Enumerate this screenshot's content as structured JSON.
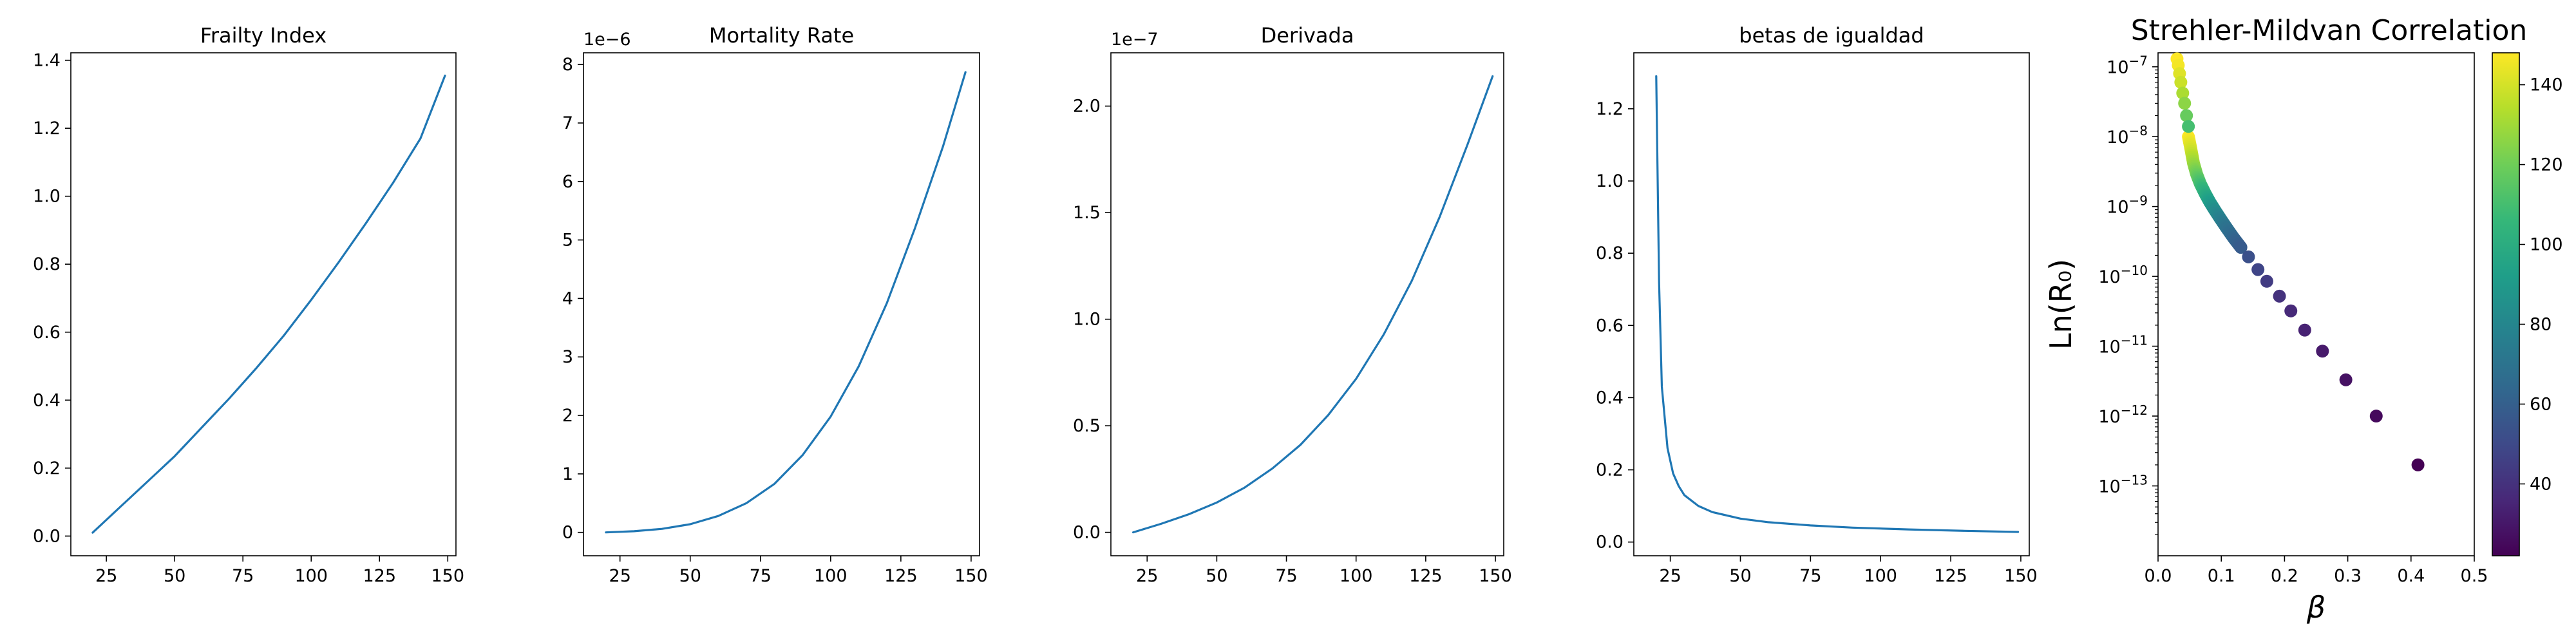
{
  "chart_data": [
    {
      "type": "line",
      "title": "Frailty Index",
      "xlim": [
        12,
        153
      ],
      "ylim": [
        -0.058,
        1.422
      ],
      "xticks": [
        25,
        50,
        75,
        100,
        125,
        150
      ],
      "xtick_labels": [
        "25",
        "50",
        "75",
        "100",
        "125",
        "150"
      ],
      "yticks": [
        0.0,
        0.2,
        0.4,
        0.6,
        0.8,
        1.0,
        1.2,
        1.4
      ],
      "ytick_labels": [
        "0.0",
        "0.2",
        "0.4",
        "0.6",
        "0.8",
        "1.0",
        "1.2",
        "1.4"
      ],
      "series": [
        {
          "color": "#1f77b4",
          "x": [
            20,
            30,
            40,
            50,
            60,
            70,
            80,
            90,
            100,
            110,
            120,
            130,
            140,
            149
          ],
          "y": [
            0.01,
            0.085,
            0.16,
            0.235,
            0.32,
            0.405,
            0.495,
            0.59,
            0.695,
            0.805,
            0.92,
            1.04,
            1.17,
            1.355
          ]
        }
      ]
    },
    {
      "type": "line",
      "title": "Mortality Rate",
      "offset_text": "1e−6",
      "xlim": [
        12,
        153
      ],
      "ylim": [
        -0.4,
        8.2
      ],
      "xticks": [
        25,
        50,
        75,
        100,
        125,
        150
      ],
      "xtick_labels": [
        "25",
        "50",
        "75",
        "100",
        "125",
        "150"
      ],
      "yticks": [
        0,
        1,
        2,
        3,
        4,
        5,
        6,
        7,
        8
      ],
      "ytick_labels": [
        "0",
        "1",
        "2",
        "3",
        "4",
        "5",
        "6",
        "7",
        "8"
      ],
      "series": [
        {
          "color": "#1f77b4",
          "x": [
            20,
            30,
            40,
            50,
            60,
            70,
            80,
            90,
            100,
            110,
            120,
            130,
            140,
            148
          ],
          "y": [
            0.0,
            0.02,
            0.06,
            0.14,
            0.28,
            0.5,
            0.83,
            1.32,
            1.98,
            2.84,
            3.92,
            5.2,
            6.6,
            7.87
          ]
        }
      ]
    },
    {
      "type": "line",
      "title": "Derivada",
      "offset_text": "1e−7",
      "xlim": [
        12,
        153
      ],
      "ylim": [
        -0.11,
        2.25
      ],
      "xticks": [
        25,
        50,
        75,
        100,
        125,
        150
      ],
      "xtick_labels": [
        "25",
        "50",
        "75",
        "100",
        "125",
        "150"
      ],
      "yticks": [
        0.0,
        0.5,
        1.0,
        1.5,
        2.0
      ],
      "ytick_labels": [
        "0.0",
        "0.5",
        "1.0",
        "1.5",
        "2.0"
      ],
      "series": [
        {
          "color": "#1f77b4",
          "x": [
            20,
            30,
            40,
            50,
            60,
            70,
            80,
            90,
            100,
            110,
            120,
            130,
            140,
            149
          ],
          "y": [
            0.0,
            0.04,
            0.085,
            0.14,
            0.21,
            0.3,
            0.41,
            0.55,
            0.72,
            0.93,
            1.18,
            1.48,
            1.82,
            2.14
          ]
        }
      ]
    },
    {
      "type": "line",
      "title": "betas de igualdad",
      "xlim": [
        12,
        153
      ],
      "ylim": [
        -0.038,
        1.355
      ],
      "xticks": [
        25,
        50,
        75,
        100,
        125,
        150
      ],
      "xtick_labels": [
        "25",
        "50",
        "75",
        "100",
        "125",
        "150"
      ],
      "yticks": [
        0.0,
        0.2,
        0.4,
        0.6,
        0.8,
        1.0,
        1.2
      ],
      "ytick_labels": [
        "0.0",
        "0.2",
        "0.4",
        "0.6",
        "0.8",
        "1.0",
        "1.2"
      ],
      "series": [
        {
          "color": "#1f77b4",
          "x": [
            20,
            21,
            22,
            24,
            26,
            28,
            30,
            35,
            40,
            50,
            60,
            75,
            90,
            110,
            130,
            149
          ],
          "y": [
            1.29,
            0.72,
            0.43,
            0.26,
            0.19,
            0.155,
            0.13,
            0.1,
            0.083,
            0.065,
            0.055,
            0.046,
            0.04,
            0.035,
            0.031,
            0.028
          ]
        }
      ]
    },
    {
      "type": "scatter",
      "title": "Strehler-Mildvan Correlation",
      "xlabel": "β",
      "ylabel": "Ln(R₀)",
      "xscale": "linear",
      "yscale": "log",
      "xlim": [
        0.0,
        0.5
      ],
      "ylim_exp": [
        -14,
        -6.8
      ],
      "xticks": [
        0.0,
        0.1,
        0.2,
        0.3,
        0.4,
        0.5
      ],
      "xtick_labels": [
        "0.0",
        "0.1",
        "0.2",
        "0.3",
        "0.4",
        "0.5"
      ],
      "yticks": [
        {
          "exp": -7,
          "label": "10−7"
        },
        {
          "exp": -8,
          "label": "10−8"
        },
        {
          "exp": -9,
          "label": "10−9"
        },
        {
          "exp": -10,
          "label": "10−10"
        },
        {
          "exp": -11,
          "label": "10−11"
        },
        {
          "exp": -12,
          "label": "10−12"
        },
        {
          "exp": -13,
          "label": "10−13"
        }
      ],
      "colorbar": {
        "cmap": "viridis",
        "range": [
          22,
          148
        ],
        "ticks": [
          40,
          60,
          80,
          100,
          120,
          140
        ],
        "tick_labels": [
          "40",
          "60",
          "80",
          "100",
          "120",
          "140"
        ]
      },
      "points_age": [
        22,
        25,
        28,
        31,
        34,
        37,
        40,
        44,
        48,
        53,
        58,
        64,
        70,
        77,
        84,
        92,
        100,
        110,
        120,
        130,
        140,
        148
      ],
      "points_beta": [
        0.411,
        0.345,
        0.297,
        0.26,
        0.232,
        0.21,
        0.192,
        0.172,
        0.158,
        0.143,
        0.131,
        0.119,
        0.108,
        0.099,
        0.09,
        0.082,
        0.075,
        0.067,
        0.061,
        0.056,
        0.052,
        0.048
      ],
      "points_ln_r0": [
        2e-13,
        1e-12,
        3.3e-12,
        8.5e-12,
        1.7e-11,
        3.2e-11,
        5.2e-11,
        8.5e-11,
        1.25e-10,
        1.9e-10,
        2.6e-10,
        3.6e-10,
        5e-10,
        6.6e-10,
        8.8e-10,
        1.15e-09,
        1.5e-09,
        2.1e-09,
        2.9e-09,
        4.2e-09,
        6.6e-09,
        1e-08
      ]
    }
  ]
}
